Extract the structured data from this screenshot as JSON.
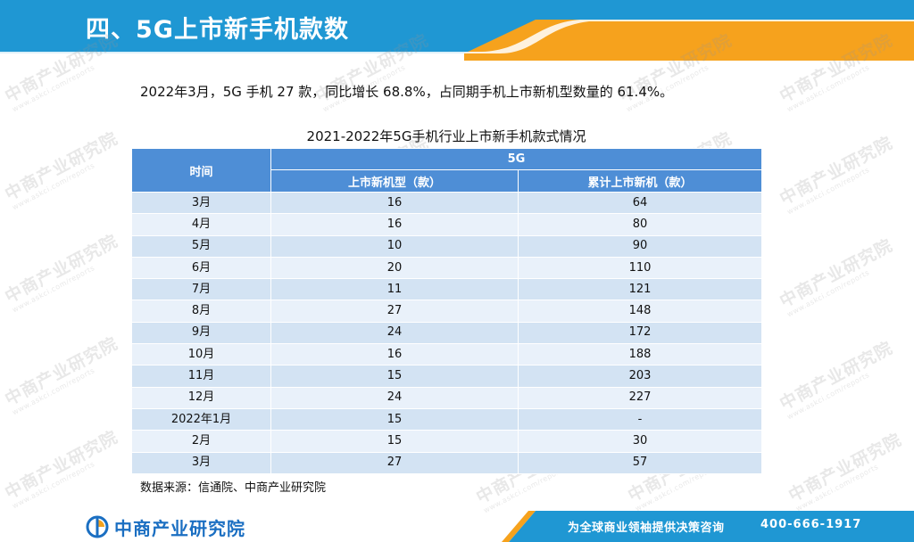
{
  "header": {
    "title": "四、5G上市新手机款数"
  },
  "summary": {
    "text": "2022年3月，5G 手机 27 款，同比增长 68.8%，占同期手机上市新机型数量的 61.4%。"
  },
  "table": {
    "caption": "2021-2022年5G手机行业上市新手机款式情况",
    "header_time": "时间",
    "header_group": "5G",
    "header_col1": "上市新机型（款）",
    "header_col2": "累计上市新机（款）",
    "rows": [
      {
        "time": "3月",
        "new_models": "16",
        "cumulative": "64"
      },
      {
        "time": "4月",
        "new_models": "16",
        "cumulative": "80"
      },
      {
        "time": "5月",
        "new_models": "10",
        "cumulative": "90"
      },
      {
        "time": "6月",
        "new_models": "20",
        "cumulative": "110"
      },
      {
        "time": "7月",
        "new_models": "11",
        "cumulative": "121"
      },
      {
        "time": "8月",
        "new_models": "27",
        "cumulative": "148"
      },
      {
        "time": "9月",
        "new_models": "24",
        "cumulative": "172"
      },
      {
        "time": "10月",
        "new_models": "16",
        "cumulative": "188"
      },
      {
        "time": "11月",
        "new_models": "15",
        "cumulative": "203"
      },
      {
        "time": "12月",
        "new_models": "24",
        "cumulative": "227"
      },
      {
        "time": "2022年1月",
        "new_models": "15",
        "cumulative": "-"
      },
      {
        "time": "2月",
        "new_models": "15",
        "cumulative": "30"
      },
      {
        "time": "3月",
        "new_models": "27",
        "cumulative": "57"
      }
    ]
  },
  "source": {
    "text": "数据来源：信通院、中商产业研究院"
  },
  "watermark": {
    "main": "中商产业研究院",
    "sub": "www.askci.com/reports"
  },
  "footer": {
    "logo_text": "中商产业研究院",
    "slogan": "为全球商业领袖提供决策咨询",
    "phone": "400-666-1917"
  },
  "colors": {
    "header_blue": "#1f97d3",
    "accent_orange": "#f6a21d",
    "table_header_blue": "#4e8ed6",
    "row_light": "#e9f1fa",
    "row_dark": "#d3e3f3",
    "footer_logo_blue": "#1b6fc2"
  }
}
